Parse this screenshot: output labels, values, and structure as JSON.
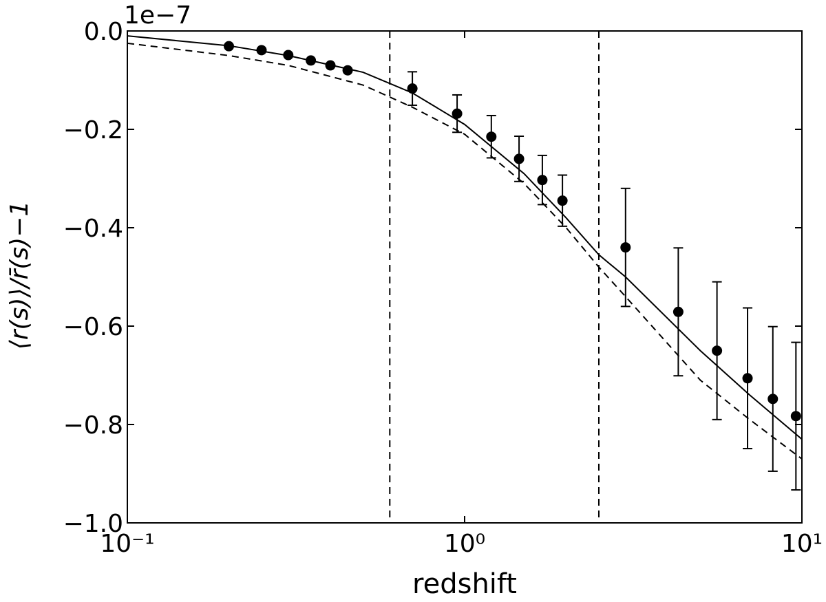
{
  "chart_data": {
    "type": "errorbar",
    "x_label": "redshift",
    "y_label": "⟨r(s)⟩/r̄(s)−1",
    "offset_label": "1e−7",
    "xscale": "log",
    "xlim": [
      0.1,
      10
    ],
    "ylim": [
      -1.0,
      0.0
    ],
    "xticks": [
      {
        "value": 0.1,
        "label": "10⁻¹"
      },
      {
        "value": 1,
        "label": "10⁰"
      },
      {
        "value": 10,
        "label": "10¹"
      }
    ],
    "yticks": [
      {
        "value": 0,
        "label": "0.0"
      },
      {
        "value": -0.2,
        "label": "−0.2"
      },
      {
        "value": -0.4,
        "label": "−0.4"
      },
      {
        "value": -0.6,
        "label": "−0.6"
      },
      {
        "value": -0.8,
        "label": "−0.8"
      },
      {
        "value": -1.0,
        "label": "−1.0"
      }
    ],
    "color": "#000000",
    "points": {
      "x": [
        0.2,
        0.25,
        0.3,
        0.35,
        0.4,
        0.45,
        0.7,
        0.95,
        1.2,
        1.45,
        1.7,
        1.95,
        3.0,
        4.3,
        5.6,
        6.9,
        8.2,
        9.6
      ],
      "y": [
        -0.031,
        -0.039,
        -0.049,
        -0.06,
        -0.07,
        -0.08,
        -0.117,
        -0.168,
        -0.215,
        -0.26,
        -0.303,
        -0.345,
        -0.44,
        -0.571,
        -0.65,
        -0.706,
        -0.748,
        -0.783
      ],
      "yerr": [
        null,
        null,
        null,
        null,
        null,
        null,
        0.034,
        0.038,
        0.043,
        0.046,
        0.05,
        0.052,
        0.12,
        0.13,
        0.14,
        0.143,
        0.147,
        0.15
      ]
    },
    "curves": [
      {
        "style": "solid",
        "x": [
          0.1,
          0.2,
          0.3,
          0.5,
          0.7,
          1,
          1.5,
          2,
          2.5,
          3,
          5,
          7,
          10
        ],
        "y": [
          -0.01,
          -0.03,
          -0.05,
          -0.084,
          -0.126,
          -0.19,
          -0.29,
          -0.38,
          -0.455,
          -0.5,
          -0.65,
          -0.74,
          -0.83
        ]
      },
      {
        "style": "dashed",
        "x": [
          0.1,
          0.2,
          0.3,
          0.5,
          0.7,
          1,
          1.5,
          2,
          2.5,
          3,
          5,
          7,
          10
        ],
        "y": [
          -0.025,
          -0.05,
          -0.07,
          -0.11,
          -0.155,
          -0.21,
          -0.31,
          -0.4,
          -0.48,
          -0.54,
          -0.71,
          -0.79,
          -0.87
        ]
      }
    ],
    "vlines": [
      0.6,
      2.5
    ]
  }
}
